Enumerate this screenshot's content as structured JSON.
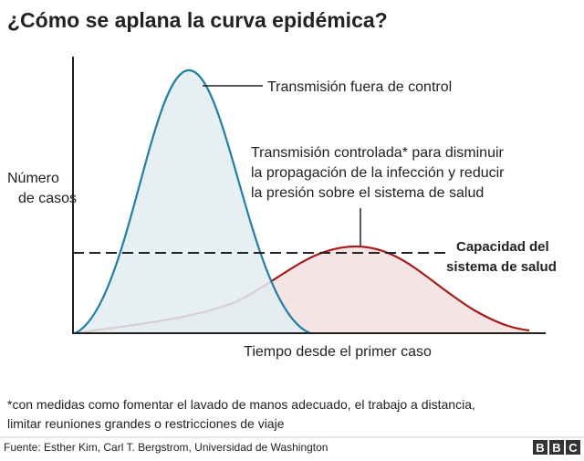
{
  "title": "¿Cómo se aplana la curva epidémica?",
  "y_axis_label": [
    "Número",
    "de casos"
  ],
  "x_axis_label": "Tiempo desde el primer caso",
  "annotations": {
    "uncontrolled": "Transmisión fuera de control",
    "controlled": [
      "Transmisión controlada* para disminuir",
      "la propagación de la infección y reducir",
      "la presión sobre el sistema de salud"
    ],
    "capacity": [
      "Capacidad del",
      "sistema de salud"
    ]
  },
  "footnote": [
    "*con medidas como fomentar el lavado de manos adecuado, el trabajo a distancia,",
    "limitar reuniones grandes o restricciones de viaje"
  ],
  "source": "Fuente: Esther Kim, Carl T. Bergstrom, Universidad de Washington",
  "logo": [
    "B",
    "B",
    "C"
  ]
}
